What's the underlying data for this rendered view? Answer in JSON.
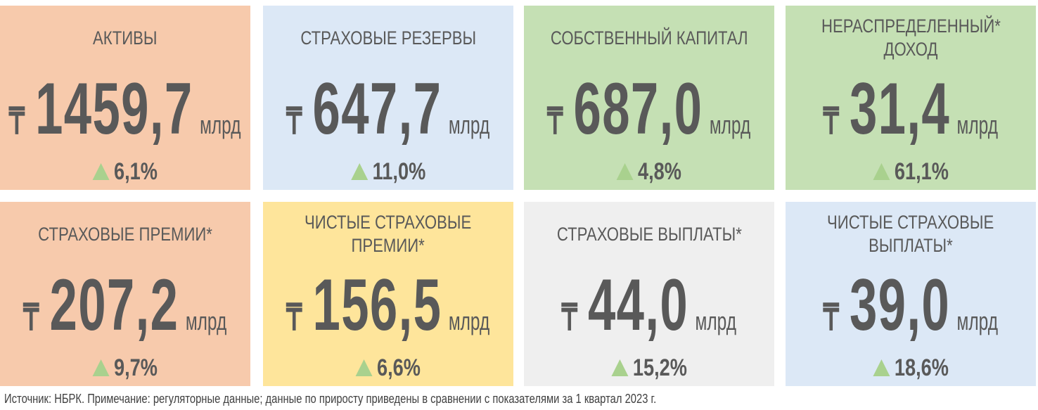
{
  "cards": [
    {
      "title": [
        "АКТИВЫ"
      ],
      "currency": "₸",
      "value": "1459,7",
      "unit": "млрд",
      "change": "6,1%"
    },
    {
      "title": [
        "СТРАХОВЫЕ РЕЗЕРВЫ"
      ],
      "currency": "₸",
      "value": "647,7",
      "unit": "млрд",
      "change": "11,0%"
    },
    {
      "title": [
        "СОБСТВЕННЫЙ КАПИТАЛ"
      ],
      "currency": "₸",
      "value": "687,0",
      "unit": "млрд",
      "change": "4,8%"
    },
    {
      "title": [
        "НЕРАСПРЕДЕЛЕННЫЙ*",
        "ДОХОД"
      ],
      "currency": "₸",
      "value": "31,4",
      "unit": "млрд",
      "change": "61,1%"
    },
    {
      "title": [
        "СТРАХОВЫЕ ПРЕМИИ*"
      ],
      "currency": "₸",
      "value": "207,2",
      "unit": "млрд",
      "change": "9,7%"
    },
    {
      "title": [
        "ЧИСТЫЕ СТРАХОВЫЕ",
        "ПРЕМИИ*"
      ],
      "currency": "₸",
      "value": "156,5",
      "unit": "млрд",
      "change": "6,6%"
    },
    {
      "title": [
        "СТРАХОВЫЕ ВЫПЛАТЫ*"
      ],
      "currency": "₸",
      "value": "44,0",
      "unit": "млрд",
      "change": "15,2%"
    },
    {
      "title": [
        "ЧИСТЫЕ СТРАХОВЫЕ",
        "ВЫПЛАТЫ*"
      ],
      "currency": "₸",
      "value": "39,0",
      "unit": "млрд",
      "change": "18,6%"
    }
  ],
  "footnote": "Источник: НБРК.  Примечание: регуляторные данные; данные по приросту приведены в сравнении с показателями за 1 квартал 2023 г."
}
